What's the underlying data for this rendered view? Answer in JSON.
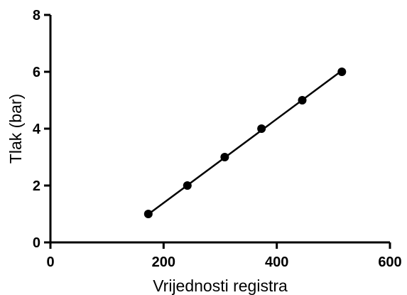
{
  "chart_data": {
    "type": "scatter",
    "xlabel": "Vrijednosti registra",
    "ylabel": "Tlak  (bar)",
    "xlim": [
      0,
      600
    ],
    "ylim": [
      0,
      8
    ],
    "xticks": [
      0,
      200,
      400,
      600
    ],
    "yticks": [
      0,
      2,
      4,
      6,
      8
    ],
    "grid": false,
    "series": [
      {
        "points": [
          {
            "x": 173,
            "y": 1
          },
          {
            "x": 242,
            "y": 2
          },
          {
            "x": 308,
            "y": 3
          },
          {
            "x": 373,
            "y": 4
          },
          {
            "x": 445,
            "y": 5
          },
          {
            "x": 515,
            "y": 6
          }
        ]
      }
    ],
    "fit_line": {
      "x_start": 173,
      "x_end": 515,
      "y_start": 0.99,
      "y_end": 6.04
    }
  }
}
